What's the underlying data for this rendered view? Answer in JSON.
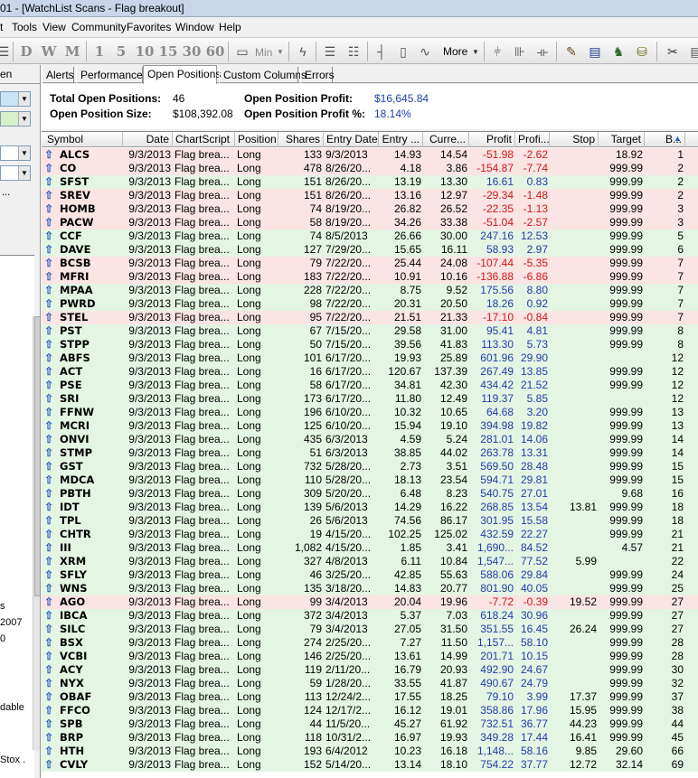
{
  "window": {
    "title": "01 - [WatchList Scans - Flag breakout]"
  },
  "menu": [
    "t",
    "Tools",
    "View",
    "Community",
    "Favorites",
    "Window",
    "Help"
  ],
  "toolbar": {
    "letters": [
      "D",
      "W",
      "M",
      "1",
      "5",
      "10",
      "15",
      "30",
      "60"
    ],
    "min_label": "Min",
    "more_label": "More"
  },
  "left_pane": {
    "snippets": [
      "en",
      "s",
      "2007",
      "0",
      "dable",
      "Stox ."
    ]
  },
  "tabs": [
    "Alerts",
    "Performance",
    "Open Positions",
    "Custom Columns",
    "Errors"
  ],
  "active_tab": "Open Positions",
  "summary": {
    "total_open_positions_label": "Total Open Positions:",
    "total_open_positions": "46",
    "open_position_size_label": "Open Position Size:",
    "open_position_size": "$108,392.08",
    "open_position_profit_label": "Open Position Profit:",
    "open_position_profit": "$16,645.84",
    "open_position_profit_pct_label": "Open Position Profit %:",
    "open_position_profit_pct": "18.14%"
  },
  "columns": [
    "Symbol",
    "Date",
    "ChartScript",
    "Position",
    "Shares",
    "Entry Date",
    "Entry ...",
    "Curre...",
    "Profit",
    "Profi...",
    "Stop",
    "Target",
    "B..."
  ],
  "rows": [
    [
      "ALCS",
      "9/3/2013",
      "Flag brea...",
      "Long",
      "133",
      "9/3/2013",
      "14.93",
      "14.54",
      "-51.98",
      "-2.62",
      "",
      "18.92",
      "1"
    ],
    [
      "CO",
      "9/3/2013",
      "Flag brea...",
      "Long",
      "478",
      "8/26/20...",
      "4.18",
      "3.86",
      "-154.87",
      "-7.74",
      "",
      "999.99",
      "2"
    ],
    [
      "SFST",
      "9/3/2013",
      "Flag brea...",
      "Long",
      "151",
      "8/26/20...",
      "13.19",
      "13.30",
      "16.61",
      "0.83",
      "",
      "999.99",
      "2"
    ],
    [
      "SREV",
      "9/3/2013",
      "Flag brea...",
      "Long",
      "151",
      "8/26/20...",
      "13.16",
      "12.97",
      "-29.34",
      "-1.48",
      "",
      "999.99",
      "2"
    ],
    [
      "HOMB",
      "9/3/2013",
      "Flag brea...",
      "Long",
      "74",
      "8/19/20...",
      "26.82",
      "26.52",
      "-22.35",
      "-1.13",
      "",
      "999.99",
      "3"
    ],
    [
      "PACW",
      "9/3/2013",
      "Flag brea...",
      "Long",
      "58",
      "8/19/20...",
      "34.26",
      "33.38",
      "-51.04",
      "-2.57",
      "",
      "999.99",
      "3"
    ],
    [
      "CCF",
      "9/3/2013",
      "Flag brea...",
      "Long",
      "74",
      "8/5/2013",
      "26.66",
      "30.00",
      "247.16",
      "12.53",
      "",
      "999.99",
      "5"
    ],
    [
      "DAVE",
      "9/3/2013",
      "Flag brea...",
      "Long",
      "127",
      "7/29/20...",
      "15.65",
      "16.11",
      "58.93",
      "2.97",
      "",
      "999.99",
      "6"
    ],
    [
      "BCSB",
      "9/3/2013",
      "Flag brea...",
      "Long",
      "79",
      "7/22/20...",
      "25.44",
      "24.08",
      "-107.44",
      "-5.35",
      "",
      "999.99",
      "7"
    ],
    [
      "MFRI",
      "9/3/2013",
      "Flag brea...",
      "Long",
      "183",
      "7/22/20...",
      "10.91",
      "10.16",
      "-136.88",
      "-6.86",
      "",
      "999.99",
      "7"
    ],
    [
      "MPAA",
      "9/3/2013",
      "Flag brea...",
      "Long",
      "228",
      "7/22/20...",
      "8.75",
      "9.52",
      "175.56",
      "8.80",
      "",
      "999.99",
      "7"
    ],
    [
      "PWRD",
      "9/3/2013",
      "Flag brea...",
      "Long",
      "98",
      "7/22/20...",
      "20.31",
      "20.50",
      "18.26",
      "0.92",
      "",
      "999.99",
      "7"
    ],
    [
      "STEL",
      "9/3/2013",
      "Flag brea...",
      "Long",
      "95",
      "7/22/20...",
      "21.51",
      "21.33",
      "-17.10",
      "-0.84",
      "",
      "999.99",
      "7"
    ],
    [
      "PST",
      "9/3/2013",
      "Flag brea...",
      "Long",
      "67",
      "7/15/20...",
      "29.58",
      "31.00",
      "95.41",
      "4.81",
      "",
      "999.99",
      "8"
    ],
    [
      "STPP",
      "9/3/2013",
      "Flag brea...",
      "Long",
      "50",
      "7/15/20...",
      "39.56",
      "41.83",
      "113.30",
      "5.73",
      "",
      "999.99",
      "8"
    ],
    [
      "ABFS",
      "9/3/2013",
      "Flag brea...",
      "Long",
      "101",
      "6/17/20...",
      "19.93",
      "25.89",
      "601.96",
      "29.90",
      "",
      "",
      "12"
    ],
    [
      "ACT",
      "9/3/2013",
      "Flag brea...",
      "Long",
      "16",
      "6/17/20...",
      "120.67",
      "137.39",
      "267.49",
      "13.85",
      "",
      "999.99",
      "12"
    ],
    [
      "PSE",
      "9/3/2013",
      "Flag brea...",
      "Long",
      "58",
      "6/17/20...",
      "34.81",
      "42.30",
      "434.42",
      "21.52",
      "",
      "999.99",
      "12"
    ],
    [
      "SRI",
      "9/3/2013",
      "Flag brea...",
      "Long",
      "173",
      "6/17/20...",
      "11.80",
      "12.49",
      "119.37",
      "5.85",
      "",
      "",
      "12"
    ],
    [
      "FFNW",
      "9/3/2013",
      "Flag brea...",
      "Long",
      "196",
      "6/10/20...",
      "10.32",
      "10.65",
      "64.68",
      "3.20",
      "",
      "999.99",
      "13"
    ],
    [
      "MCRI",
      "9/3/2013",
      "Flag brea...",
      "Long",
      "125",
      "6/10/20...",
      "15.94",
      "19.10",
      "394.98",
      "19.82",
      "",
      "999.99",
      "13"
    ],
    [
      "ONVI",
      "9/3/2013",
      "Flag brea...",
      "Long",
      "435",
      "6/3/2013",
      "4.59",
      "5.24",
      "281.01",
      "14.06",
      "",
      "999.99",
      "14"
    ],
    [
      "STMP",
      "9/3/2013",
      "Flag brea...",
      "Long",
      "51",
      "6/3/2013",
      "38.85",
      "44.02",
      "263.78",
      "13.31",
      "",
      "999.99",
      "14"
    ],
    [
      "GST",
      "9/3/2013",
      "Flag brea...",
      "Long",
      "732",
      "5/28/20...",
      "2.73",
      "3.51",
      "569.50",
      "28.48",
      "",
      "999.99",
      "15"
    ],
    [
      "MDCA",
      "9/3/2013",
      "Flag brea...",
      "Long",
      "110",
      "5/28/20...",
      "18.13",
      "23.54",
      "594.71",
      "29.81",
      "",
      "999.99",
      "15"
    ],
    [
      "PBTH",
      "9/3/2013",
      "Flag brea...",
      "Long",
      "309",
      "5/20/20...",
      "6.48",
      "8.23",
      "540.75",
      "27.01",
      "",
      "9.68",
      "16"
    ],
    [
      "IDT",
      "9/3/2013",
      "Flag brea...",
      "Long",
      "139",
      "5/6/2013",
      "14.29",
      "16.22",
      "268.85",
      "13.54",
      "13.81",
      "999.99",
      "18"
    ],
    [
      "TPL",
      "9/3/2013",
      "Flag brea...",
      "Long",
      "26",
      "5/6/2013",
      "74.56",
      "86.17",
      "301.95",
      "15.58",
      "",
      "999.99",
      "18"
    ],
    [
      "CHTR",
      "9/3/2013",
      "Flag brea...",
      "Long",
      "19",
      "4/15/20...",
      "102.25",
      "125.02",
      "432.59",
      "22.27",
      "",
      "999.99",
      "21"
    ],
    [
      "III",
      "9/3/2013",
      "Flag brea...",
      "Long",
      "1,082",
      "4/15/20...",
      "1.85",
      "3.41",
      "1,690...",
      "84.52",
      "",
      "4.57",
      "21"
    ],
    [
      "XRM",
      "9/3/2013",
      "Flag brea...",
      "Long",
      "327",
      "4/8/2013",
      "6.11",
      "10.84",
      "1,547...",
      "77.52",
      "5.99",
      "",
      "22"
    ],
    [
      "SFLY",
      "9/3/2013",
      "Flag brea...",
      "Long",
      "46",
      "3/25/20...",
      "42.85",
      "55.63",
      "588.06",
      "29.84",
      "",
      "999.99",
      "24"
    ],
    [
      "WNS",
      "9/3/2013",
      "Flag brea...",
      "Long",
      "135",
      "3/18/20...",
      "14.83",
      "20.77",
      "801.90",
      "40.05",
      "",
      "999.99",
      "25"
    ],
    [
      "AGO",
      "9/3/2013",
      "Flag brea...",
      "Long",
      "99",
      "3/4/2013",
      "20.04",
      "19.96",
      "-7.72",
      "-0.39",
      "19.52",
      "999.99",
      "27"
    ],
    [
      "IBCA",
      "9/3/2013",
      "Flag brea...",
      "Long",
      "372",
      "3/4/2013",
      "5.37",
      "7.03",
      "618.24",
      "30.96",
      "",
      "999.99",
      "27"
    ],
    [
      "SILC",
      "9/3/2013",
      "Flag brea...",
      "Long",
      "79",
      "3/4/2013",
      "27.05",
      "31.50",
      "351.55",
      "16.45",
      "26.24",
      "999.99",
      "27"
    ],
    [
      "BSX",
      "9/3/2013",
      "Flag brea...",
      "Long",
      "274",
      "2/25/20...",
      "7.27",
      "11.50",
      "1,157...",
      "58.10",
      "",
      "999.99",
      "28"
    ],
    [
      "VCBI",
      "9/3/2013",
      "Flag brea...",
      "Long",
      "146",
      "2/25/20...",
      "13.61",
      "14.99",
      "201.71",
      "10.15",
      "",
      "999.99",
      "28"
    ],
    [
      "ACY",
      "9/3/2013",
      "Flag brea...",
      "Long",
      "119",
      "2/11/20...",
      "16.79",
      "20.93",
      "492.90",
      "24.67",
      "",
      "999.99",
      "30"
    ],
    [
      "NYX",
      "9/3/2013",
      "Flag brea...",
      "Long",
      "59",
      "1/28/20...",
      "33.55",
      "41.87",
      "490.67",
      "24.79",
      "",
      "999.99",
      "32"
    ],
    [
      "OBAF",
      "9/3/2013",
      "Flag brea...",
      "Long",
      "113",
      "12/24/2...",
      "17.55",
      "18.25",
      "79.10",
      "3.99",
      "17.37",
      "999.99",
      "37"
    ],
    [
      "FFCO",
      "9/3/2013",
      "Flag brea...",
      "Long",
      "124",
      "12/17/2...",
      "16.12",
      "19.01",
      "358.86",
      "17.96",
      "15.95",
      "999.99",
      "38"
    ],
    [
      "SPB",
      "9/3/2013",
      "Flag brea...",
      "Long",
      "44",
      "11/5/20...",
      "45.27",
      "61.92",
      "732.51",
      "36.77",
      "44.23",
      "999.99",
      "44"
    ],
    [
      "BRP",
      "9/3/2013",
      "Flag brea...",
      "Long",
      "118",
      "10/31/2...",
      "16.97",
      "19.93",
      "349.28",
      "17.44",
      "16.41",
      "999.99",
      "45"
    ],
    [
      "HTH",
      "9/3/2013",
      "Flag brea...",
      "Long",
      "193",
      "6/4/2012",
      "10.23",
      "16.18",
      "1,148...",
      "58.16",
      "9.85",
      "29.60",
      "66"
    ],
    [
      "CVLY",
      "9/3/2013",
      "Flag brea...",
      "Long",
      "152",
      "5/14/20...",
      "13.14",
      "18.10",
      "754.22",
      "37.77",
      "12.72",
      "32.14",
      "69"
    ]
  ],
  "colors": {
    "positive_row": "#e4f5e4",
    "negative_row": "#fae4e4",
    "positive_text": "#1f3ea8",
    "negative_text": "#d01818"
  }
}
